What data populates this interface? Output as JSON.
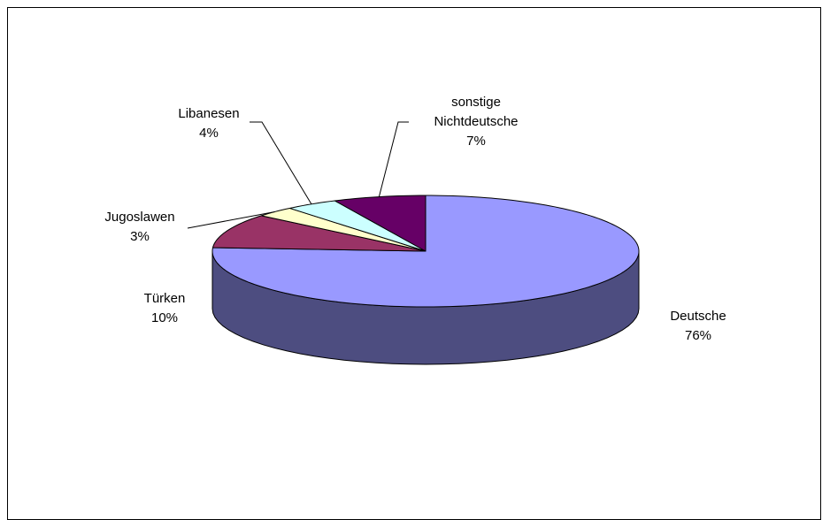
{
  "chart_data": {
    "type": "pie",
    "style": "3d-exploded-none",
    "unit": "%",
    "slices": [
      {
        "name": "Deutsche",
        "value": 76,
        "label": "76%",
        "color": "#9999ff",
        "side_color": "#4d4d80"
      },
      {
        "name": "Türken",
        "value": 10,
        "label": "10%",
        "color": "#993366",
        "side_color": "#4d1a33"
      },
      {
        "name": "Jugoslawen",
        "value": 3,
        "label": "3%",
        "color": "#ffffcc",
        "side_color": "#80806a"
      },
      {
        "name": "Libanesen",
        "value": 4,
        "label": "4%",
        "color": "#ccffff",
        "side_color": "#6a8080"
      },
      {
        "name": "sonstige Nichtdeutsche",
        "name_lines": [
          "sonstige",
          "Nichtdeutsche"
        ],
        "value": 7,
        "label": "7%",
        "color": "#660066",
        "side_color": "#330033"
      }
    ],
    "legend": "none"
  }
}
